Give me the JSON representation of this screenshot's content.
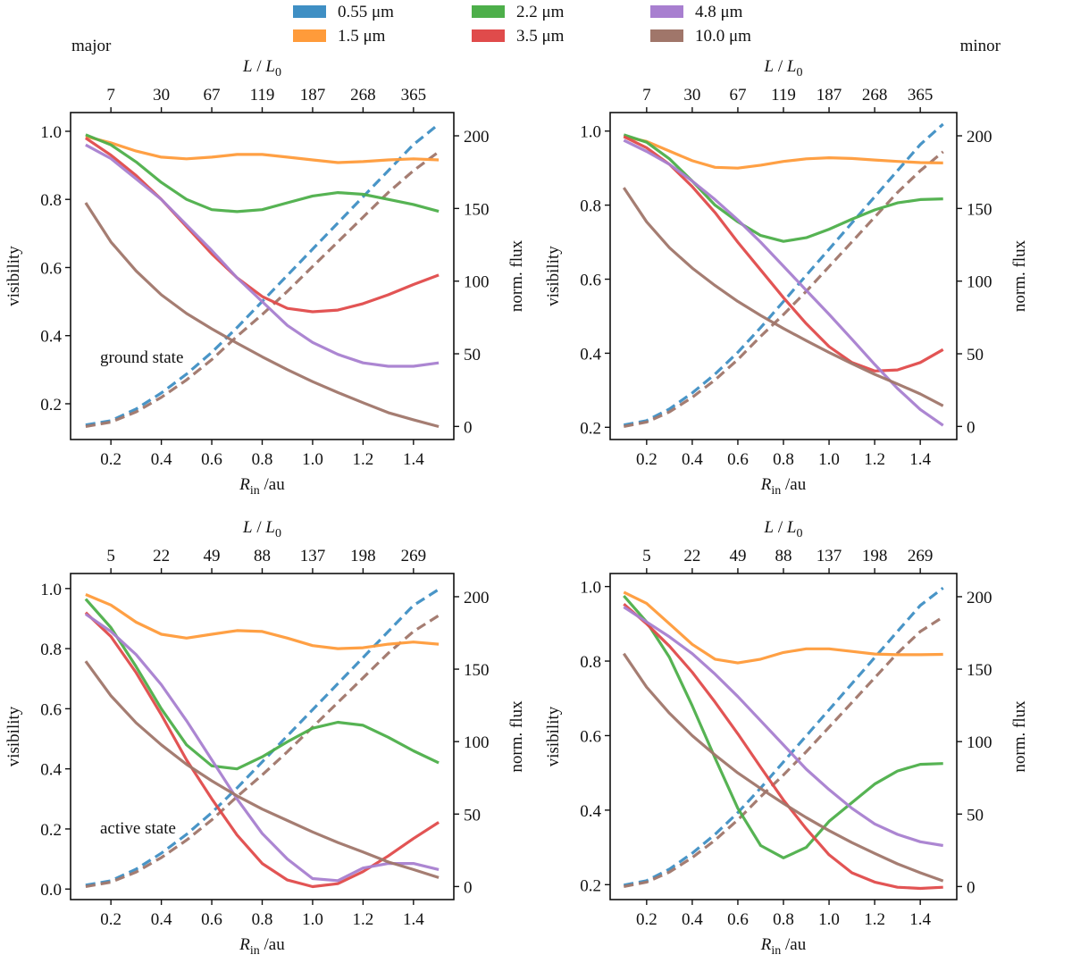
{
  "chart_data": {
    "type": "line",
    "legend": {
      "placement": "top-center",
      "entries": [
        {
          "key": "w055",
          "label": "0.55 μm",
          "color": "#3f8fc4"
        },
        {
          "key": "w15",
          "label": "1.5 μm",
          "color": "#ff9b3a"
        },
        {
          "key": "w22",
          "label": "2.2 μm",
          "color": "#4daf4a"
        },
        {
          "key": "w35",
          "label": "3.5 μm",
          "color": "#e04b4b"
        },
        {
          "key": "w48",
          "label": "4.8 μm",
          "color": "#a87fd0"
        },
        {
          "key": "w10",
          "label": "10.0 μm",
          "color": "#a0766a"
        }
      ]
    },
    "corner_labels": {
      "left": "major",
      "right": "minor"
    },
    "x": [
      0.1,
      0.2,
      0.3,
      0.4,
      0.5,
      0.6,
      0.7,
      0.8,
      0.9,
      1.0,
      1.1,
      1.2,
      1.3,
      1.4,
      1.5
    ],
    "panels": [
      {
        "id": "top-left",
        "state_label": "ground state",
        "xlabel": "R_in /au",
        "ylabel": "visibility",
        "y2label": "norm. flux",
        "top_xlabel": "L / L0",
        "xlim": [
          0.04,
          1.56
        ],
        "xticks": [
          0.2,
          0.4,
          0.6,
          0.8,
          1.0,
          1.2,
          1.4
        ],
        "xtick_labels": [
          "0.2",
          "0.4",
          "0.6",
          "0.8",
          "1.0",
          "1.2",
          "1.4"
        ],
        "top_xtick_labels": [
          "7",
          "30",
          "67",
          "119",
          "187",
          "268",
          "365"
        ],
        "ylim": [
          0.095,
          1.055
        ],
        "yticks": [
          0.2,
          0.4,
          0.6,
          0.8,
          1.0
        ],
        "ytick_labels": [
          "0.2",
          "0.4",
          "0.6",
          "0.8",
          "1.0"
        ],
        "y2lim": [
          -9,
          216
        ],
        "y2ticks": [
          0,
          50,
          100,
          150,
          200
        ],
        "y2tick_labels": [
          "0",
          "50",
          "100",
          "150",
          "200"
        ],
        "visibility_series": [
          {
            "key": "w15",
            "name": "1.5 μm",
            "values": [
              0.985,
              0.966,
              0.942,
              0.924,
              0.919,
              0.924,
              0.932,
              0.932,
              0.924,
              0.916,
              0.908,
              0.911,
              0.916,
              0.919,
              0.916
            ]
          },
          {
            "key": "w22",
            "name": "2.2 μm",
            "values": [
              0.99,
              0.96,
              0.91,
              0.85,
              0.8,
              0.77,
              0.764,
              0.77,
              0.79,
              0.81,
              0.82,
              0.815,
              0.8,
              0.785,
              0.765
            ]
          },
          {
            "key": "w35",
            "name": "3.5 μm",
            "values": [
              0.98,
              0.93,
              0.87,
              0.8,
              0.72,
              0.64,
              0.57,
              0.515,
              0.48,
              0.47,
              0.475,
              0.494,
              0.52,
              0.55,
              0.578
            ]
          },
          {
            "key": "w48",
            "name": "4.8 μm",
            "values": [
              0.96,
              0.92,
              0.86,
              0.8,
              0.725,
              0.65,
              0.57,
              0.5,
              0.43,
              0.38,
              0.345,
              0.32,
              0.31,
              0.31,
              0.32
            ]
          },
          {
            "key": "w10",
            "name": "10.0 μm",
            "values": [
              0.79,
              0.675,
              0.59,
              0.52,
              0.465,
              0.42,
              0.378,
              0.338,
              0.3,
              0.265,
              0.233,
              0.203,
              0.174,
              0.153,
              0.133
            ]
          }
        ],
        "flux_series": [
          {
            "key": "w055",
            "name": "0.55 μm",
            "values": [
              1,
              4,
              12,
              23,
              36,
              51,
              68,
              86,
              104,
              122,
              140,
              158,
              176,
              194,
              208
            ]
          },
          {
            "key": "w10",
            "name": "10.0 μm",
            "values": [
              0,
              3,
              10,
              20,
              32,
              46,
              62,
              77,
              93,
              110,
              127,
              144,
              161,
              176,
              189
            ]
          }
        ]
      },
      {
        "id": "top-right",
        "state_label": "",
        "xlabel": "R_in /au",
        "ylabel": "visibility",
        "y2label": "norm. flux",
        "top_xlabel": "L / L0",
        "xlim": [
          0.04,
          1.56
        ],
        "xticks": [
          0.2,
          0.4,
          0.6,
          0.8,
          1.0,
          1.2,
          1.4
        ],
        "xtick_labels": [
          "0.2",
          "0.4",
          "0.6",
          "0.8",
          "1.0",
          "1.2",
          "1.4"
        ],
        "top_xtick_labels": [
          "7",
          "30",
          "67",
          "119",
          "187",
          "268",
          "365"
        ],
        "ylim": [
          0.167,
          1.05
        ],
        "yticks": [
          0.2,
          0.4,
          0.6,
          0.8,
          1.0
        ],
        "ytick_labels": [
          "0.2",
          "0.4",
          "0.6",
          "0.8",
          "1.0"
        ],
        "y2lim": [
          -9,
          216
        ],
        "y2ticks": [
          0,
          50,
          100,
          150,
          200
        ],
        "y2tick_labels": [
          "0",
          "50",
          "100",
          "150",
          "200"
        ],
        "visibility_series": [
          {
            "key": "w15",
            "name": "1.5 μm",
            "values": [
              0.985,
              0.972,
              0.946,
              0.92,
              0.902,
              0.9,
              0.908,
              0.918,
              0.925,
              0.928,
              0.926,
              0.922,
              0.918,
              0.915,
              0.914
            ]
          },
          {
            "key": "w22",
            "name": "2.2 μm",
            "values": [
              0.99,
              0.97,
              0.925,
              0.865,
              0.8,
              0.755,
              0.718,
              0.702,
              0.712,
              0.735,
              0.762,
              0.787,
              0.806,
              0.815,
              0.817
            ]
          },
          {
            "key": "w35",
            "name": "3.5 μm",
            "values": [
              0.985,
              0.955,
              0.91,
              0.85,
              0.78,
              0.7,
              0.625,
              0.55,
              0.48,
              0.418,
              0.375,
              0.352,
              0.355,
              0.375,
              0.41
            ]
          },
          {
            "key": "w48",
            "name": "4.8 μm",
            "values": [
              0.975,
              0.945,
              0.91,
              0.865,
              0.815,
              0.76,
              0.7,
              0.635,
              0.57,
              0.505,
              0.438,
              0.37,
              0.305,
              0.248,
              0.205
            ]
          },
          {
            "key": "w10",
            "name": "10.0 μm",
            "values": [
              0.847,
              0.755,
              0.685,
              0.63,
              0.583,
              0.54,
              0.502,
              0.467,
              0.434,
              0.402,
              0.372,
              0.343,
              0.317,
              0.29,
              0.258
            ]
          }
        ],
        "flux_series": [
          {
            "key": "w055",
            "name": "0.55 μm",
            "values": [
              1,
              4,
              12,
              23,
              36,
              51,
              68,
              86,
              104,
              122,
              140,
              158,
              176,
              194,
              208
            ]
          },
          {
            "key": "w10",
            "name": "10.0 μm",
            "values": [
              0,
              3,
              10,
              20,
              32,
              46,
              62,
              77,
              93,
              110,
              127,
              144,
              161,
              176,
              189
            ]
          }
        ]
      },
      {
        "id": "bottom-left",
        "state_label": "active state",
        "xlabel": "R_in /au",
        "ylabel": "visibility",
        "y2label": "norm. flux",
        "top_xlabel": "L / L0",
        "xlim": [
          0.04,
          1.56
        ],
        "xticks": [
          0.2,
          0.4,
          0.6,
          0.8,
          1.0,
          1.2,
          1.4
        ],
        "xtick_labels": [
          "0.2",
          "0.4",
          "0.6",
          "0.8",
          "1.0",
          "1.2",
          "1.4"
        ],
        "top_xtick_labels": [
          "5",
          "22",
          "49",
          "88",
          "137",
          "198",
          "269"
        ],
        "ylim": [
          -0.035,
          1.05
        ],
        "yticks": [
          0.0,
          0.2,
          0.4,
          0.6,
          0.8,
          1.0
        ],
        "ytick_labels": [
          "0.0",
          "0.2",
          "0.4",
          "0.6",
          "0.8",
          "1.0"
        ],
        "y2lim": [
          -9,
          216
        ],
        "y2ticks": [
          0,
          50,
          100,
          150,
          200
        ],
        "y2tick_labels": [
          "0",
          "50",
          "100",
          "150",
          "200"
        ],
        "visibility_series": [
          {
            "key": "w15",
            "name": "1.5 μm",
            "values": [
              0.98,
              0.945,
              0.888,
              0.848,
              0.835,
              0.848,
              0.86,
              0.857,
              0.835,
              0.81,
              0.8,
              0.803,
              0.815,
              0.822,
              0.815
            ]
          },
          {
            "key": "w22",
            "name": "2.2 μm",
            "values": [
              0.965,
              0.87,
              0.74,
              0.6,
              0.48,
              0.41,
              0.4,
              0.44,
              0.49,
              0.535,
              0.555,
              0.545,
              0.505,
              0.46,
              0.42
            ]
          },
          {
            "key": "w35",
            "name": "3.5 μm",
            "values": [
              0.92,
              0.84,
              0.72,
              0.58,
              0.43,
              0.3,
              0.18,
              0.085,
              0.03,
              0.008,
              0.018,
              0.058,
              0.11,
              0.168,
              0.222
            ]
          },
          {
            "key": "w48",
            "name": "4.8 μm",
            "values": [
              0.915,
              0.857,
              0.78,
              0.68,
              0.56,
              0.43,
              0.3,
              0.185,
              0.1,
              0.035,
              0.028,
              0.07,
              0.085,
              0.085,
              0.065
            ]
          },
          {
            "key": "w10",
            "name": "10.0 μm",
            "values": [
              0.758,
              0.643,
              0.553,
              0.48,
              0.415,
              0.36,
              0.31,
              0.266,
              0.228,
              0.19,
              0.155,
              0.123,
              0.09,
              0.065,
              0.038
            ]
          }
        ],
        "flux_series": [
          {
            "key": "w055",
            "name": "0.55 μm",
            "values": [
              1,
              4,
              12,
              23,
              36,
              51,
              68,
              86,
              104,
              122,
              140,
              158,
              176,
              194,
              205
            ]
          },
          {
            "key": "w10",
            "name": "10.0 μm",
            "values": [
              0,
              3,
              10,
              20,
              32,
              46,
              62,
              77,
              93,
              110,
              127,
              144,
              161,
              176,
              187
            ]
          }
        ]
      },
      {
        "id": "bottom-right",
        "state_label": "",
        "xlabel": "R_in /au",
        "ylabel": "visibility",
        "y2label": "norm. flux",
        "top_xlabel": "L / L0",
        "xlim": [
          0.04,
          1.56
        ],
        "xticks": [
          0.2,
          0.4,
          0.6,
          0.8,
          1.0,
          1.2,
          1.4
        ],
        "xtick_labels": [
          "0.2",
          "0.4",
          "0.6",
          "0.8",
          "1.0",
          "1.2",
          "1.4"
        ],
        "top_xtick_labels": [
          "5",
          "22",
          "49",
          "88",
          "137",
          "198",
          "269"
        ],
        "ylim": [
          0.16,
          1.035
        ],
        "yticks": [
          0.2,
          0.4,
          0.6,
          0.8,
          1.0
        ],
        "ytick_labels": [
          "0.2",
          "0.4",
          "0.6",
          "0.8",
          "1.0"
        ],
        "y2lim": [
          -9,
          216
        ],
        "y2ticks": [
          0,
          50,
          100,
          150,
          200
        ],
        "y2tick_labels": [
          "0",
          "50",
          "100",
          "150",
          "200"
        ],
        "visibility_series": [
          {
            "key": "w15",
            "name": "1.5 μm",
            "values": [
              0.985,
              0.955,
              0.9,
              0.845,
              0.805,
              0.795,
              0.805,
              0.823,
              0.833,
              0.833,
              0.826,
              0.819,
              0.817,
              0.817,
              0.818
            ]
          },
          {
            "key": "w22",
            "name": "2.2 μm",
            "values": [
              0.975,
              0.905,
              0.81,
              0.68,
              0.54,
              0.405,
              0.305,
              0.272,
              0.3,
              0.37,
              0.42,
              0.47,
              0.505,
              0.523,
              0.525
            ]
          },
          {
            "key": "w35",
            "name": "3.5 μm",
            "values": [
              0.953,
              0.9,
              0.84,
              0.77,
              0.69,
              0.605,
              0.515,
              0.427,
              0.35,
              0.28,
              0.232,
              0.207,
              0.193,
              0.19,
              0.193
            ]
          },
          {
            "key": "w48",
            "name": "4.8 μm",
            "values": [
              0.945,
              0.905,
              0.865,
              0.82,
              0.765,
              0.705,
              0.64,
              0.575,
              0.51,
              0.455,
              0.405,
              0.363,
              0.335,
              0.315,
              0.305
            ]
          },
          {
            "key": "w10",
            "name": "10.0 μm",
            "values": [
              0.82,
              0.73,
              0.66,
              0.6,
              0.548,
              0.5,
              0.458,
              0.418,
              0.38,
              0.345,
              0.313,
              0.284,
              0.256,
              0.232,
              0.21
            ]
          }
        ],
        "flux_series": [
          {
            "key": "w055",
            "name": "0.55 μm",
            "values": [
              1,
              4,
              12,
              23,
              36,
              51,
              68,
              86,
              104,
              122,
              140,
              158,
              176,
              194,
              206
            ]
          },
          {
            "key": "w10",
            "name": "10.0 μm",
            "values": [
              0,
              3,
              10,
              20,
              32,
              46,
              62,
              77,
              93,
              110,
              127,
              144,
              161,
              176,
              186
            ]
          }
        ]
      }
    ]
  }
}
